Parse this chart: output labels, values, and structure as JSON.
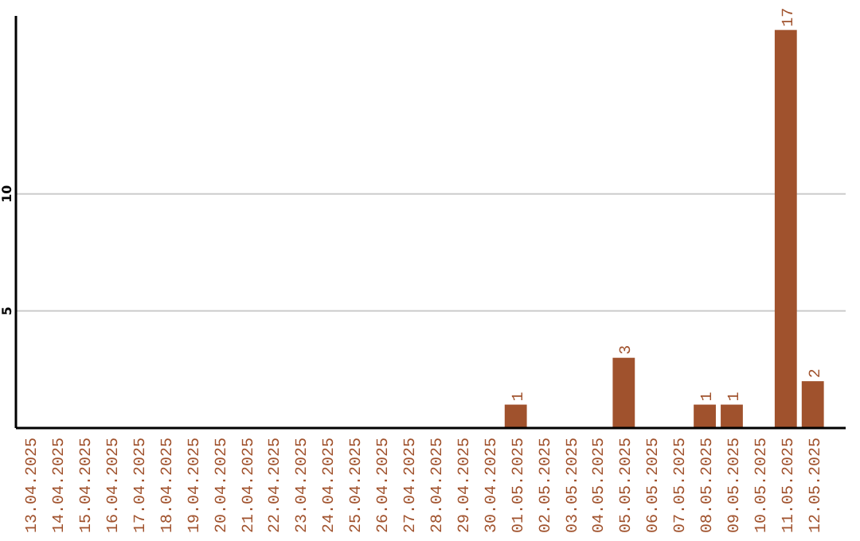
{
  "chart_data": {
    "type": "bar",
    "categories": [
      "13.04.2025",
      "14.04.2025",
      "15.04.2025",
      "16.04.2025",
      "17.04.2025",
      "18.04.2025",
      "19.04.2025",
      "20.04.2025",
      "21.04.2025",
      "22.04.2025",
      "23.04.2025",
      "24.04.2025",
      "25.04.2025",
      "26.04.2025",
      "27.04.2025",
      "28.04.2025",
      "29.04.2025",
      "30.04.2025",
      "01.05.2025",
      "02.05.2025",
      "03.05.2025",
      "04.05.2025",
      "05.05.2025",
      "06.05.2025",
      "07.05.2025",
      "08.05.2025",
      "09.05.2025",
      "10.05.2025",
      "11.05.2025",
      "12.05.2025"
    ],
    "values": [
      0,
      0,
      0,
      0,
      0,
      0,
      0,
      0,
      0,
      0,
      0,
      0,
      0,
      0,
      0,
      0,
      0,
      0,
      1,
      0,
      0,
      0,
      3,
      0,
      0,
      1,
      1,
      0,
      17,
      2
    ],
    "value_labels": [
      null,
      null,
      null,
      null,
      null,
      null,
      null,
      null,
      null,
      null,
      null,
      null,
      null,
      null,
      null,
      null,
      null,
      null,
      "1",
      null,
      null,
      null,
      "3",
      null,
      null,
      "1",
      "1",
      null,
      "17",
      "2"
    ],
    "color": "#a0522d",
    "ylim": [
      0,
      17.6
    ],
    "yticks": [
      5,
      10
    ],
    "grid": "y"
  }
}
